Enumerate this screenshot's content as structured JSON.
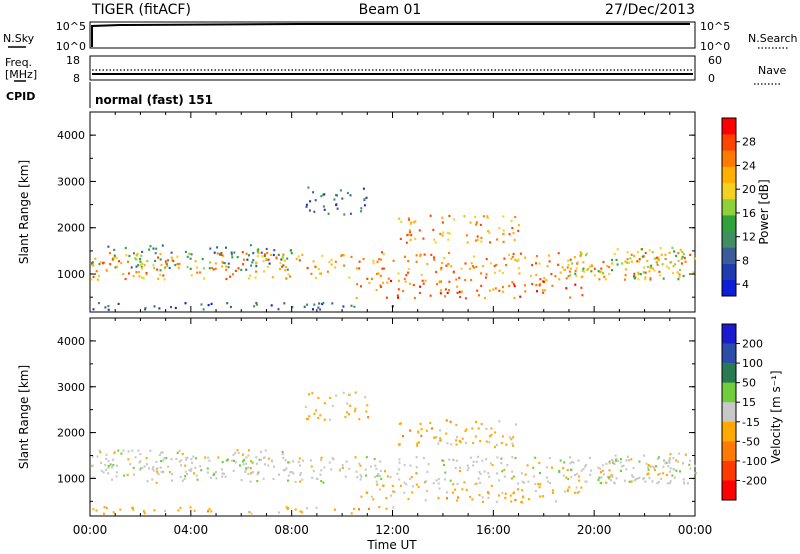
{
  "header": {
    "radar": "TIGER (fitACF)",
    "beam": "Beam 01",
    "date": "27/Dec/2013"
  },
  "noise_panel": {
    "left_label": "N.Sky",
    "right_label": "N.Search",
    "left_ticks": [
      "10^5",
      "10^0"
    ],
    "right_ticks": [
      "10^5",
      "10^0"
    ]
  },
  "freq_panel": {
    "left_label_1": "Freq.",
    "left_label_2": "[MHz]",
    "right_label": "Nave",
    "left_ticks": [
      "18",
      "8"
    ],
    "right_ticks": [
      "60",
      "0"
    ]
  },
  "cpid_panel": {
    "label": "CPID",
    "text": "normal (fast) 151"
  },
  "x_axis": {
    "label": "Time UT",
    "ticks": [
      "00:00",
      "04:00",
      "08:00",
      "12:00",
      "16:00",
      "20:00",
      "00:00"
    ]
  },
  "power_panel": {
    "ylabel": "Slant Range [km]",
    "yticks": [
      "4000",
      "3000",
      "2000",
      "1000"
    ],
    "colorbar_label": "Power [dB]",
    "colorbar_ticks": [
      "28",
      "24",
      "20",
      "16",
      "12",
      "8",
      "4"
    ],
    "colors": [
      "#0a1fd6",
      "#203ab0",
      "#3a5d9a",
      "#3f8f62",
      "#2fa23a",
      "#8ed13a",
      "#f2d21f",
      "#ffb000",
      "#ff7a00",
      "#ff4400",
      "#ff0000"
    ]
  },
  "velocity_panel": {
    "ylabel": "Slant Range [km]",
    "yticks": [
      "4000",
      "3000",
      "2000",
      "1000"
    ],
    "colorbar_label": "Velocity [m s⁻¹]",
    "colorbar_ticks": [
      "200",
      "100",
      "50",
      "15",
      "-15",
      "-50",
      "-100",
      "-200"
    ],
    "colors": [
      "#1a1ad0",
      "#2a4ea8",
      "#2a7a50",
      "#6fce3a",
      "#c8c8c8",
      "#ffaa00",
      "#ff7a00",
      "#ff3a00",
      "#ff0000"
    ]
  },
  "chart_data": [
    {
      "type": "heatmap",
      "title": "Power [dB]",
      "xlabel": "Time UT",
      "ylabel": "Slant Range [km]",
      "xlim": [
        "00:00",
        "24:00"
      ],
      "ylim": [
        180,
        4500
      ],
      "colorbar_range": [
        0,
        30
      ],
      "regions": [
        {
          "range_km": [
            1100,
            1650
          ],
          "time_h": [
            0,
            8
          ],
          "power_db": 10
        },
        {
          "range_km": [
            900,
            1500
          ],
          "time_h": [
            0,
            24
          ],
          "power_db": 22
        },
        {
          "range_km": [
            500,
            900
          ],
          "time_h": [
            10.5,
            19.5
          ],
          "power_db": 24
        },
        {
          "range_km": [
            1700,
            2300
          ],
          "time_h": [
            12,
            17
          ],
          "power_db": 22
        },
        {
          "range_km": [
            2300,
            2900
          ],
          "time_h": [
            8.5,
            11
          ],
          "power_db": 8
        },
        {
          "range_km": [
            900,
            1600
          ],
          "time_h": [
            19,
            24
          ],
          "power_db": 16
        },
        {
          "range_km": [
            250,
            400
          ],
          "time_h": [
            0,
            12
          ],
          "power_db": 6
        }
      ]
    },
    {
      "type": "heatmap",
      "title": "Velocity [m s⁻¹]",
      "xlabel": "Time UT",
      "ylabel": "Slant Range [km]",
      "xlim": [
        "00:00",
        "24:00"
      ],
      "ylim": [
        180,
        4500
      ],
      "colorbar_range": [
        -200,
        200
      ],
      "regions": [
        {
          "range_km": [
            1100,
            1650
          ],
          "time_h": [
            0,
            8
          ],
          "velocity_ms": 0
        },
        {
          "range_km": [
            900,
            1500
          ],
          "time_h": [
            0,
            24
          ],
          "velocity_ms": 0
        },
        {
          "range_km": [
            500,
            900
          ],
          "time_h": [
            10.5,
            19.5
          ],
          "velocity_ms": -40
        },
        {
          "range_km": [
            1700,
            2300
          ],
          "time_h": [
            12,
            17
          ],
          "velocity_ms": -40
        },
        {
          "range_km": [
            2300,
            2900
          ],
          "time_h": [
            8.5,
            11
          ],
          "velocity_ms": -40
        },
        {
          "range_km": [
            900,
            1600
          ],
          "time_h": [
            19,
            24
          ],
          "velocity_ms": 0
        },
        {
          "range_km": [
            250,
            400
          ],
          "time_h": [
            0,
            12
          ],
          "velocity_ms": -40
        }
      ]
    }
  ]
}
